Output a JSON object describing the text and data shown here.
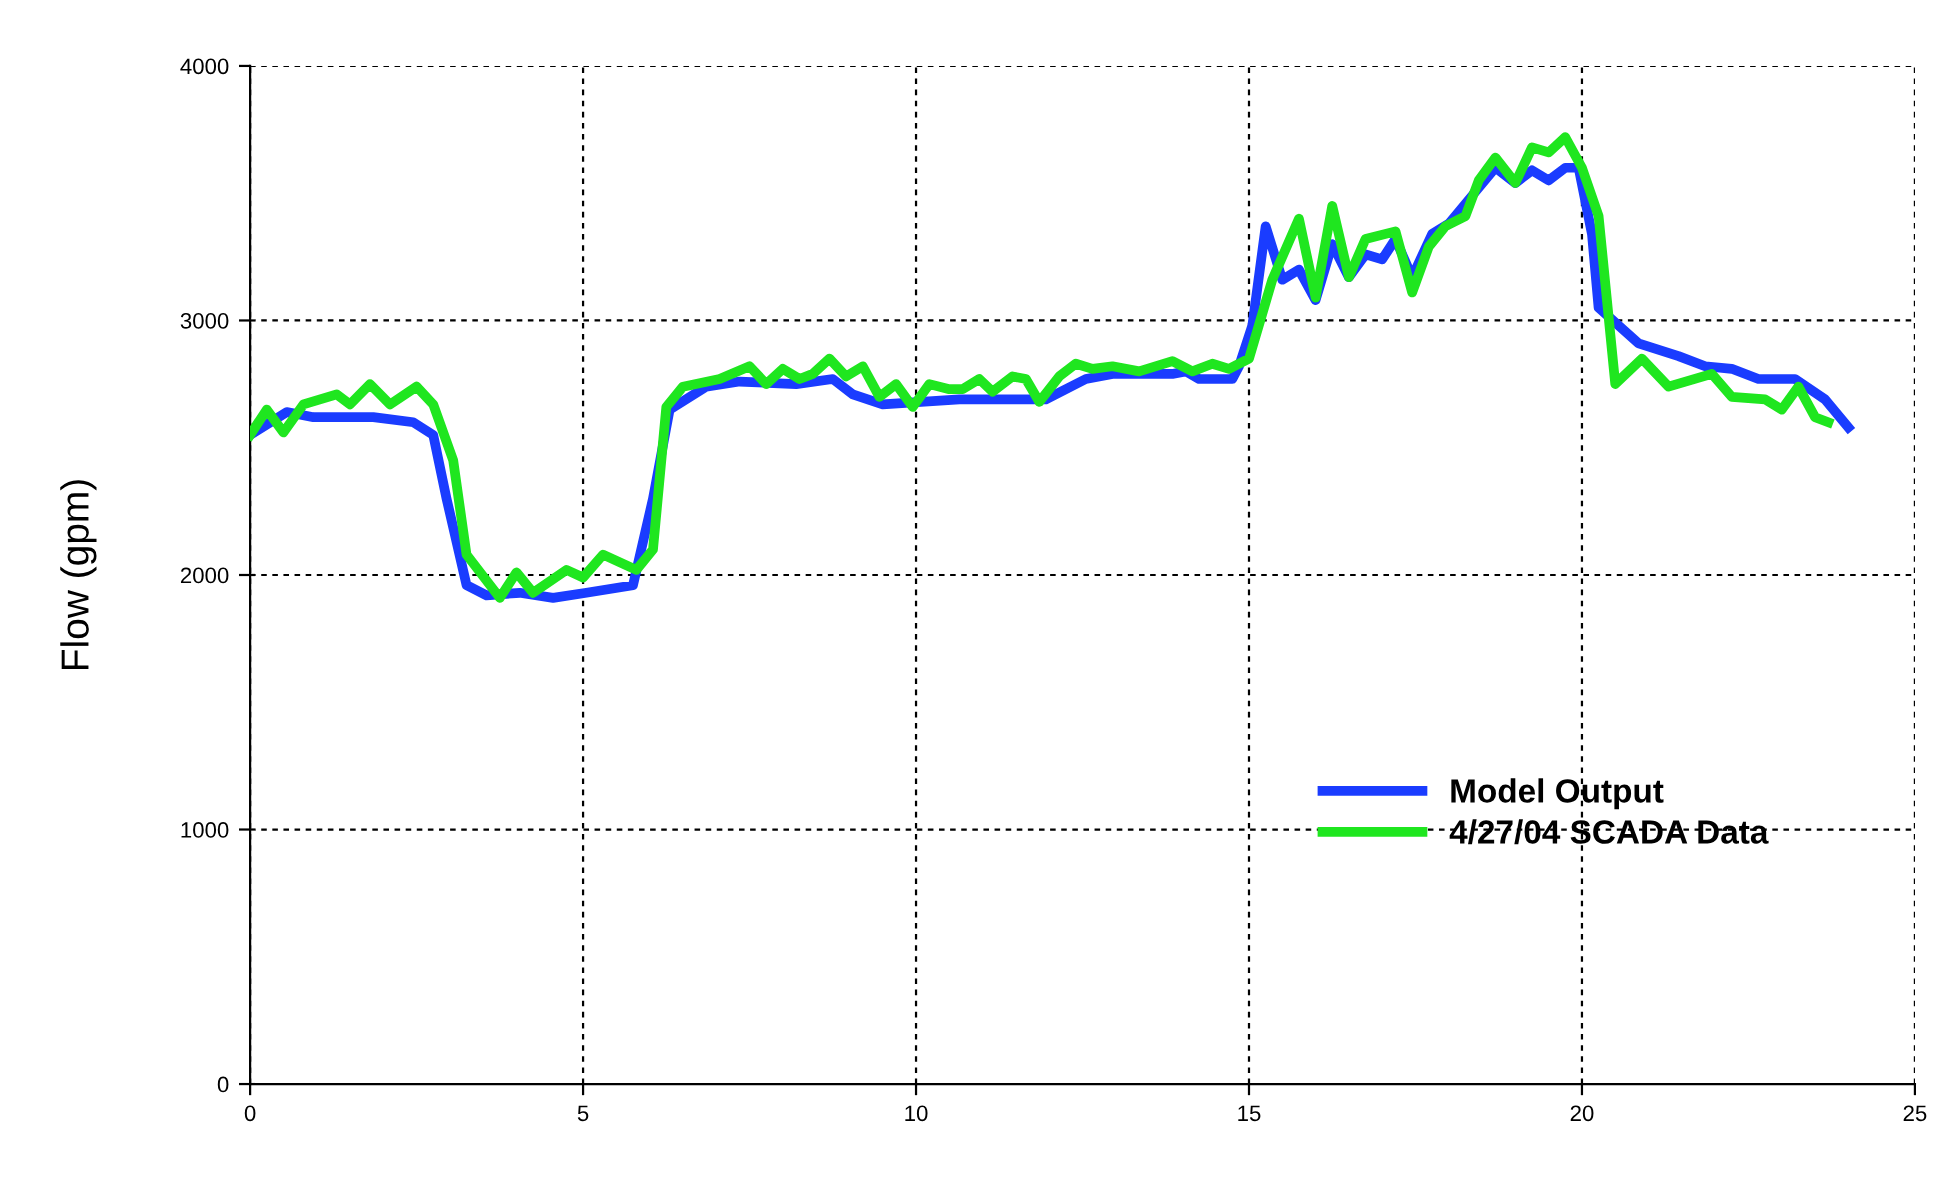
{
  "chart_data": {
    "type": "line",
    "ylabel": "Flow (gpm)",
    "xlim": [
      0,
      25
    ],
    "xticks": [
      0,
      5,
      10,
      15,
      20,
      25
    ],
    "ylim": [
      0,
      4000
    ],
    "yticks": [
      0,
      1000,
      2000,
      3000,
      4000
    ],
    "grid": true,
    "legend": "bottom right",
    "line_style": "solid",
    "series": [
      {
        "name": "Model Output",
        "color": "#1a3cff",
        "x": [
          0,
          0.55,
          0.95,
          1.85,
          2.45,
          2.75,
          2.95,
          3.25,
          3.55,
          4.05,
          4.55,
          5.05,
          5.75,
          6.05,
          6.3,
          6.85,
          7.35,
          8.2,
          8.75,
          9.05,
          9.5,
          10.65,
          11.95,
          12.55,
          12.95,
          13.85,
          14.05,
          14.25,
          14.75,
          14.85,
          15.05,
          15.25,
          15.5,
          15.75,
          16.0,
          16.25,
          16.5,
          16.75,
          17.0,
          17.2,
          17.45,
          17.75,
          18.0,
          18.35,
          18.7,
          19.0,
          19.25,
          19.5,
          19.75,
          19.95,
          20.15,
          20.25,
          20.85,
          21.45,
          21.85,
          22.25,
          22.65,
          23.2,
          23.65,
          24.0
        ],
        "values": [
          2550,
          2640,
          2620,
          2620,
          2600,
          2550,
          2300,
          1960,
          1920,
          1930,
          1910,
          1930,
          1960,
          2300,
          2650,
          2740,
          2760,
          2750,
          2770,
          2710,
          2670,
          2690,
          2690,
          2770,
          2790,
          2790,
          2800,
          2770,
          2770,
          2820,
          2980,
          3370,
          3160,
          3200,
          3080,
          3300,
          3170,
          3260,
          3240,
          3320,
          3170,
          3340,
          3380,
          3490,
          3600,
          3540,
          3590,
          3550,
          3600,
          3600,
          3340,
          3050,
          2910,
          2860,
          2820,
          2810,
          2770,
          2770,
          2690,
          2580
        ]
      },
      {
        "name": "4/27/04 SCADA Data",
        "color": "#1fe61f",
        "x": [
          0,
          0.25,
          0.5,
          0.8,
          1.3,
          1.5,
          1.8,
          2.1,
          2.5,
          2.75,
          3.05,
          3.25,
          3.75,
          4.0,
          4.25,
          4.75,
          5.0,
          5.3,
          5.8,
          6.05,
          6.25,
          6.5,
          7.05,
          7.5,
          7.75,
          8.0,
          8.25,
          8.45,
          8.7,
          8.95,
          9.2,
          9.45,
          9.7,
          9.95,
          10.2,
          10.5,
          10.7,
          10.95,
          11.15,
          11.45,
          11.65,
          11.85,
          12.15,
          12.4,
          12.65,
          12.95,
          13.35,
          13.85,
          14.15,
          14.45,
          14.7,
          15.0,
          15.35,
          15.75,
          16.0,
          16.25,
          16.5,
          16.75,
          17.2,
          17.45,
          17.7,
          17.95,
          18.25,
          18.45,
          18.7,
          19.0,
          19.25,
          19.5,
          19.75,
          20.0,
          20.25,
          20.5,
          20.9,
          21.3,
          21.95,
          22.25,
          22.75,
          23.0,
          23.25,
          23.5,
          23.7
        ],
        "values": [
          2550,
          2650,
          2560,
          2670,
          2710,
          2670,
          2750,
          2670,
          2740,
          2670,
          2450,
          2080,
          1910,
          2010,
          1930,
          2020,
          1990,
          2080,
          2020,
          2100,
          2660,
          2740,
          2770,
          2820,
          2750,
          2810,
          2770,
          2790,
          2850,
          2780,
          2820,
          2700,
          2750,
          2660,
          2750,
          2730,
          2730,
          2770,
          2720,
          2780,
          2770,
          2680,
          2780,
          2830,
          2810,
          2820,
          2800,
          2840,
          2800,
          2830,
          2810,
          2850,
          3160,
          3400,
          3090,
          3450,
          3170,
          3320,
          3350,
          3110,
          3290,
          3370,
          3410,
          3550,
          3640,
          3540,
          3680,
          3660,
          3720,
          3600,
          3410,
          2750,
          2850,
          2740,
          2790,
          2700,
          2690,
          2650,
          2740,
          2620,
          2600
        ]
      }
    ]
  }
}
